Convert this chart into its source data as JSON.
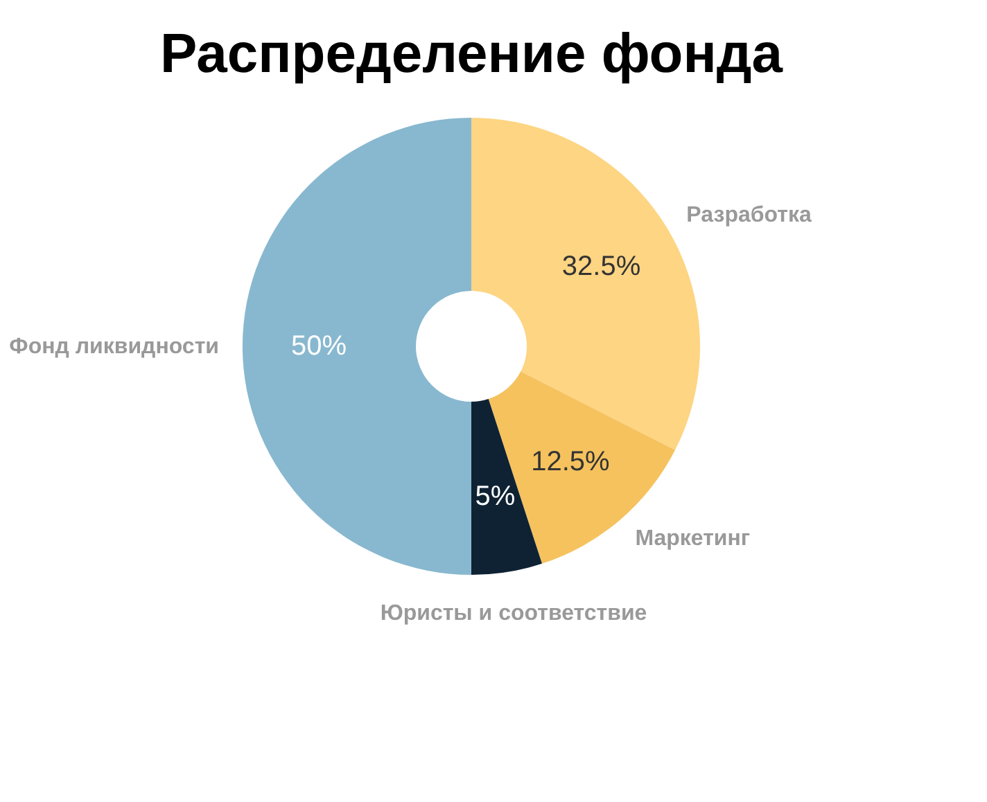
{
  "chart_data": {
    "type": "donut",
    "title": "Распределение фонда",
    "categories": [
      "Разработка",
      "Маркетинг",
      "Юристы и соответствие",
      "Фонд ликвидности"
    ],
    "values": [
      32.5,
      12.5,
      5,
      50
    ],
    "colors": [
      "#fdd583",
      "#f5c25e",
      "#0e2233",
      "#88b8cf"
    ],
    "value_labels": [
      "32.5%",
      "12.5%",
      "5%",
      "50%"
    ]
  }
}
